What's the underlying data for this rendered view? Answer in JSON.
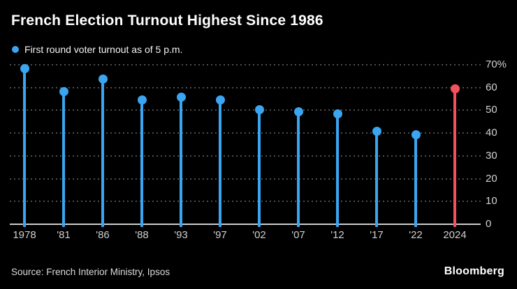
{
  "header": {
    "title": "French Election Turnout Highest Since 1986"
  },
  "legend": {
    "label": "First round voter turnout as of 5 p.m.",
    "marker": "dot-icon",
    "marker_color": "#3AA5F0"
  },
  "footer": {
    "source": "Source: French Interior Ministry, Ipsos",
    "brand": "Bloomberg"
  },
  "colors": {
    "background": "#000000",
    "series_blue": "#3AA5F0",
    "highlight_red": "#F4515F",
    "gridline": "#4e4e4e",
    "axis_line": "#cdcdcd",
    "tick_text": "#d2d2d2",
    "title_text": "#ffffff"
  },
  "chart_data": {
    "type": "bar",
    "variant": "lollipop",
    "title": "French Election Turnout Highest Since 1986",
    "legend_entries": [
      "First round voter turnout as of 5 p.m."
    ],
    "legend_position": "top-left",
    "categories": [
      "1978",
      "'81",
      "'86",
      "'88",
      "'93",
      "'97",
      "'02",
      "'07",
      "'12",
      "'17",
      "'22",
      "2024"
    ],
    "values": [
      68.3,
      58.3,
      63.8,
      54.5,
      55.8,
      54.6,
      50.4,
      49.3,
      48.3,
      40.9,
      39.4,
      59.4
    ],
    "unit": "%",
    "highlight_index": 11,
    "series_color": "#3AA5F0",
    "highlight_color": "#F4515F",
    "xlabel": "",
    "ylabel": "",
    "ylim": [
      0,
      70
    ],
    "yticks": [
      0,
      10,
      20,
      30,
      40,
      50,
      60,
      70
    ],
    "ytick_labels": [
      "0",
      "10",
      "20",
      "30",
      "40",
      "50",
      "60",
      "70%"
    ],
    "ytick_side": "right",
    "grid": "horizontal-dotted",
    "background": "black"
  }
}
